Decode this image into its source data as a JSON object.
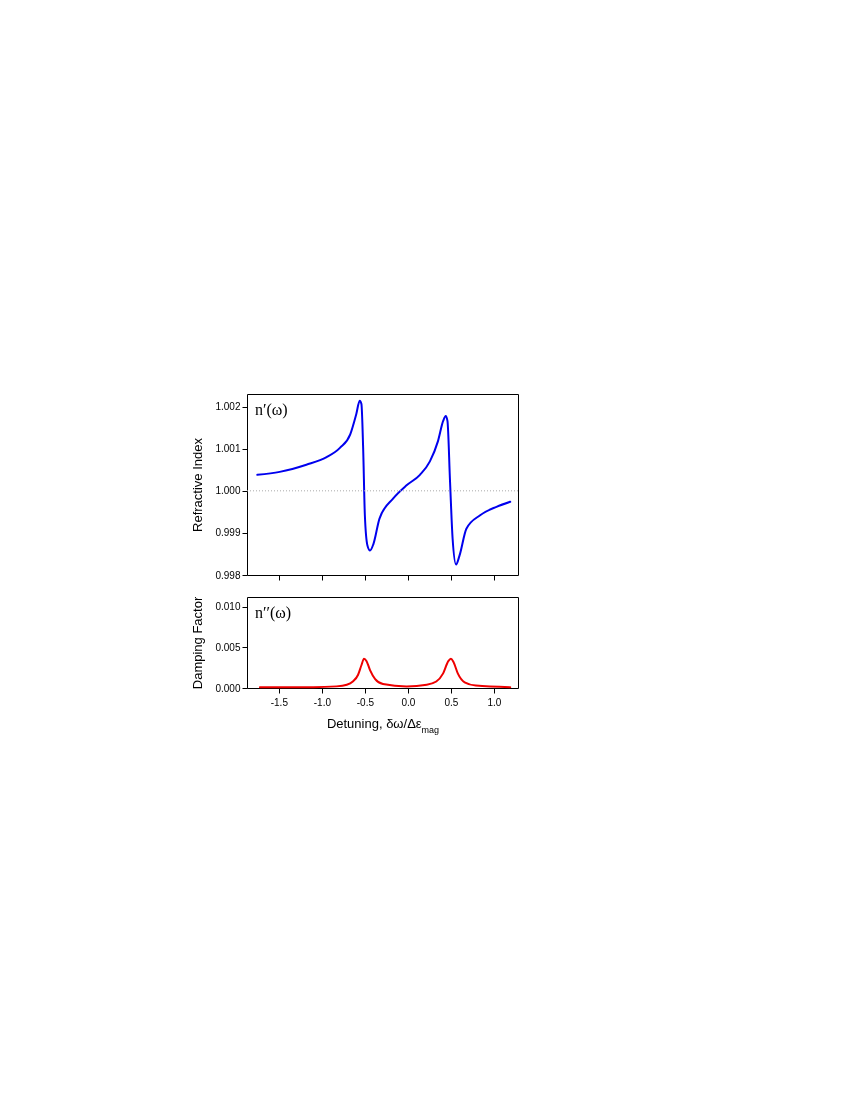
{
  "chart_data": [
    {
      "type": "line",
      "ylabel": "Refractive Index",
      "annotations": [
        "n′(ω)"
      ],
      "xlim": [
        -1.87,
        1.28
      ],
      "xticks": [
        -1.5,
        -1,
        -0.5,
        0,
        0.5,
        1
      ],
      "ylim": [
        0.998,
        1.0023
      ],
      "yticks": [
        0.998,
        0.999,
        {
          "value": 1,
          "label": "1.000"
        },
        1.001,
        1.002
      ],
      "tick_labels": "y",
      "grid": false,
      "line_style": "solid",
      "ref_lines": [
        {
          "axis": "y",
          "value": 1,
          "color": "#aaaaaa",
          "line_style": "dotted"
        }
      ],
      "series": [
        {
          "color": "#0000ee",
          "x": [
            -1.75,
            -1.49,
            -1.18,
            -0.945,
            -0.79,
            -0.67,
            -0.6,
            -0.56,
            -0.54,
            -0.52,
            -0.5,
            -0.47,
            -0.44,
            -0.4,
            -0.33,
            -0.17,
            -0.015,
            0.14,
            0.256,
            0.35,
            0.41,
            0.44,
            0.46,
            0.49,
            0.52,
            0.56,
            0.6,
            0.68,
            0.84,
            1.03,
            1.19
          ],
          "values": [
            1.00038,
            1.00045,
            1.00062,
            1.0008,
            1.00102,
            1.00134,
            1.00182,
            1.00214,
            1.00206,
            1.00102,
            0.99942,
            0.9987,
            0.99858,
            0.99874,
            0.99934,
            0.99982,
            1.00013,
            1.00038,
            1.0007,
            1.00118,
            1.00166,
            1.00178,
            1.00166,
            1.00022,
            0.99886,
            0.99825,
            0.99846,
            0.9991,
            0.99942,
            0.99962,
            0.99974
          ]
        }
      ]
    },
    {
      "type": "line",
      "ylabel": "Damping Factor",
      "xlabel": "Detuning, δω/Δε$_{mag}$",
      "annotations": [
        "n′′(ω)"
      ],
      "xlim": [
        -1.87,
        1.28
      ],
      "xticks": [
        -1.5,
        {
          "value": -1,
          "label": "-1.0"
        },
        -0.5,
        {
          "value": 0,
          "label": "0.0"
        },
        0.5,
        {
          "value": 1,
          "label": "1.0"
        }
      ],
      "ylim": [
        0,
        0.0112
      ],
      "yticks": [
        {
          "value": 0,
          "label": "0.000"
        },
        0.005,
        {
          "value": 0.01,
          "label": "0.010"
        }
      ],
      "grid": false,
      "line_style": "solid",
      "series": [
        {
          "color": "#ee0000",
          "x": [
            -1.72,
            -1.1,
            -0.83,
            -0.71,
            -0.64,
            -0.58,
            -0.54,
            -0.51,
            -0.48,
            -0.44,
            -0.38,
            -0.29,
            -0.015,
            0.22,
            0.33,
            0.41,
            0.47,
            0.5,
            0.53,
            0.58,
            0.66,
            0.79,
            1.19
          ],
          "values": [
            0.0001,
            0.0001,
            0.0002,
            0.0004,
            0.0008,
            0.0016,
            0.0028,
            0.0036,
            0.0033,
            0.0022,
            0.0011,
            0.0005,
            0.0002,
            0.0004,
            0.0008,
            0.0018,
            0.0033,
            0.0036,
            0.0032,
            0.0018,
            0.0007,
            0.0003,
            0.0001
          ]
        }
      ]
    }
  ]
}
